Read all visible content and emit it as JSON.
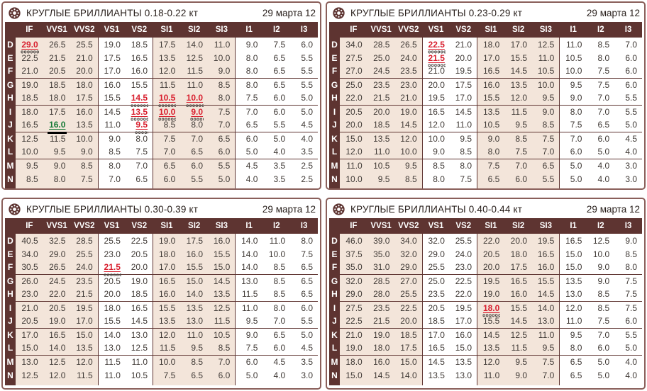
{
  "theme": {
    "maroon": "#5e3431",
    "panel_border": "#8a5f5a",
    "beige": "#f3e5da",
    "white": "#ffffff",
    "number_text": "#403a36",
    "title_text": "#2a211d",
    "change_down_red": "#d81f2e",
    "change_up_green": "#157a36"
  },
  "icon": {
    "name": "round-diamond-icon"
  },
  "columns": [
    "IF",
    "VVS1",
    "VVS2",
    "VS1",
    "VS2",
    "SI1",
    "SI2",
    "SI3",
    "I1",
    "I2",
    "I3"
  ],
  "row_labels": [
    "D",
    "E",
    "F",
    "G",
    "H",
    "I",
    "J",
    "K",
    "L",
    "M",
    "N"
  ],
  "panels": [
    {
      "title": "КРУГЛЫЕ БРИЛЛИАНТЫ 0.18-0.22 кт",
      "date": "29 марта 12",
      "rows": [
        [
          "29.0",
          "26.5",
          "25.5",
          "19.0",
          "18.5",
          "17.5",
          "14.0",
          "11.0",
          "9.0",
          "7.5",
          "6.0"
        ],
        [
          "22.5",
          "21.5",
          "21.0",
          "17.5",
          "16.5",
          "13.5",
          "12.5",
          "10.0",
          "8.0",
          "6.5",
          "5.5"
        ],
        [
          "21.0",
          "20.5",
          "20.0",
          "17.0",
          "16.0",
          "12.0",
          "11.5",
          "9.0",
          "8.0",
          "6.5",
          "5.5"
        ],
        [
          "19.0",
          "18.5",
          "18.0",
          "16.0",
          "15.5",
          "11.5",
          "11.0",
          "8.5",
          "8.0",
          "6.5",
          "5.5"
        ],
        [
          "18.5",
          "18.0",
          "17.5",
          "15.5",
          "14.5",
          "10.5",
          "10.0",
          "8.0",
          "7.5",
          "6.0",
          "5.0"
        ],
        [
          "18.0",
          "17.5",
          "16.0",
          "14.5",
          "13.5",
          "10.0",
          "9.0",
          "7.5",
          "7.0",
          "6.0",
          "5.0"
        ],
        [
          "16.5",
          "16.0",
          "13.5",
          "11.0",
          "9.5",
          "8.5",
          "8.0",
          "7.0",
          "6.5",
          "5.5",
          "4.5"
        ],
        [
          "12.5",
          "11.5",
          "10.0",
          "9.0",
          "8.0",
          "7.5",
          "7.0",
          "6.5",
          "6.0",
          "5.0",
          "4.0"
        ],
        [
          "10.0",
          "9.5",
          "9.0",
          "8.5",
          "7.5",
          "7.0",
          "6.5",
          "6.0",
          "5.0",
          "4.0",
          "3.5"
        ],
        [
          "9.5",
          "9.0",
          "8.5",
          "8.0",
          "7.0",
          "6.5",
          "6.0",
          "5.5",
          "4.5",
          "3.5",
          "2.5"
        ],
        [
          "8.5",
          "8.0",
          "7.5",
          "7.0",
          "6.5",
          "6.0",
          "5.5",
          "5.0",
          "4.0",
          "3.5",
          "2.5"
        ]
      ],
      "changes": [
        {
          "row": "D",
          "col": "IF",
          "dir": "down"
        },
        {
          "row": "H",
          "col": "VS2",
          "dir": "down"
        },
        {
          "row": "H",
          "col": "SI1",
          "dir": "down"
        },
        {
          "row": "H",
          "col": "SI2",
          "dir": "down"
        },
        {
          "row": "I",
          "col": "VS2",
          "dir": "down"
        },
        {
          "row": "I",
          "col": "SI1",
          "dir": "down"
        },
        {
          "row": "I",
          "col": "SI2",
          "dir": "down"
        },
        {
          "row": "J",
          "col": "VVS1",
          "dir": "up"
        },
        {
          "row": "J",
          "col": "VS2",
          "dir": "down"
        }
      ]
    },
    {
      "title": "КРУГЛЫЕ БРИЛЛИАНТЫ 0.23-0.29 кт",
      "date": "29 марта 12",
      "rows": [
        [
          "34.0",
          "28.5",
          "26.5",
          "22.5",
          "21.0",
          "18.0",
          "17.0",
          "12.5",
          "11.0",
          "8.5",
          "7.0"
        ],
        [
          "27.5",
          "25.0",
          "24.0",
          "21.5",
          "20.0",
          "17.0",
          "15.5",
          "11.0",
          "10.5",
          "8.0",
          "6.0"
        ],
        [
          "27.0",
          "24.5",
          "23.5",
          "21.0",
          "19.5",
          "16.5",
          "14.5",
          "10.5",
          "10.0",
          "7.5",
          "6.0"
        ],
        [
          "25.0",
          "23.5",
          "23.0",
          "20.0",
          "17.5",
          "16.0",
          "13.5",
          "10.0",
          "9.5",
          "7.5",
          "6.0"
        ],
        [
          "22.0",
          "21.5",
          "21.0",
          "19.5",
          "17.0",
          "15.5",
          "12.0",
          "9.5",
          "9.0",
          "7.0",
          "5.5"
        ],
        [
          "20.5",
          "20.0",
          "19.0",
          "16.5",
          "14.5",
          "13.5",
          "11.5",
          "9.0",
          "8.0",
          "7.0",
          "5.5"
        ],
        [
          "20.0",
          "18.5",
          "14.5",
          "12.0",
          "11.0",
          "10.5",
          "9.5",
          "8.5",
          "7.5",
          "6.5",
          "5.0"
        ],
        [
          "15.0",
          "13.5",
          "12.0",
          "10.0",
          "9.5",
          "9.0",
          "8.5",
          "7.5",
          "7.0",
          "6.0",
          "4.5"
        ],
        [
          "12.0",
          "11.0",
          "10.0",
          "9.0",
          "8.5",
          "8.0",
          "7.5",
          "7.0",
          "6.0",
          "5.0",
          "4.0"
        ],
        [
          "11.0",
          "10.5",
          "9.5",
          "8.5",
          "8.0",
          "7.5",
          "7.0",
          "6.5",
          "5.0",
          "4.0",
          "3.0"
        ],
        [
          "10.0",
          "9.5",
          "8.5",
          "8.0",
          "7.5",
          "6.5",
          "6.0",
          "5.5",
          "5.0",
          "4.0",
          "3.0"
        ]
      ],
      "changes": [
        {
          "row": "D",
          "col": "VS1",
          "dir": "down"
        },
        {
          "row": "E",
          "col": "VS1",
          "dir": "down"
        }
      ]
    },
    {
      "title": "КРУГЛЫЕ БРИЛЛИАНТЫ 0.30-0.39 кт",
      "date": "29 марта 12",
      "rows": [
        [
          "40.5",
          "32.5",
          "28.5",
          "25.5",
          "22.5",
          "19.0",
          "17.5",
          "16.0",
          "14.0",
          "11.0",
          "8.0"
        ],
        [
          "34.0",
          "29.0",
          "25.5",
          "23.0",
          "20.5",
          "18.0",
          "16.0",
          "15.5",
          "14.0",
          "10.0",
          "7.5"
        ],
        [
          "30.5",
          "26.5",
          "24.0",
          "21.5",
          "20.0",
          "17.0",
          "15.5",
          "15.0",
          "14.0",
          "8.5",
          "6.5"
        ],
        [
          "26.0",
          "24.5",
          "23.5",
          "20.5",
          "19.0",
          "16.5",
          "15.0",
          "14.5",
          "13.0",
          "8.5",
          "6.5"
        ],
        [
          "23.0",
          "22.0",
          "21.5",
          "20.0",
          "18.5",
          "16.0",
          "14.0",
          "13.5",
          "11.5",
          "8.5",
          "6.5"
        ],
        [
          "21.0",
          "20.5",
          "19.5",
          "18.0",
          "16.5",
          "15.5",
          "13.5",
          "12.5",
          "11.0",
          "8.0",
          "6.0"
        ],
        [
          "20.5",
          "19.0",
          "17.0",
          "15.5",
          "14.5",
          "13.5",
          "13.0",
          "11.5",
          "9.5",
          "7.0",
          "5.5"
        ],
        [
          "17.0",
          "16.5",
          "15.0",
          "14.0",
          "13.0",
          "12.0",
          "11.0",
          "10.5",
          "9.0",
          "6.5",
          "5.0"
        ],
        [
          "15.0",
          "14.0",
          "13.5",
          "13.0",
          "12.5",
          "11.5",
          "9.5",
          "8.5",
          "7.5",
          "6.0",
          "4.5"
        ],
        [
          "13.0",
          "12.5",
          "12.0",
          "11.5",
          "11.0",
          "10.0",
          "8.5",
          "7.0",
          "6.0",
          "4.5",
          "3.5"
        ],
        [
          "12.5",
          "12.0",
          "11.5",
          "11.0",
          "10.5",
          "7.5",
          "6.5",
          "6.0",
          "5.0",
          "4.0",
          "3.0"
        ]
      ],
      "changes": [
        {
          "row": "F",
          "col": "VS1",
          "dir": "down"
        }
      ]
    },
    {
      "title": "КРУГЛЫЕ БРИЛЛИАНТЫ 0.40-0.44 кт",
      "date": "29 марта 12",
      "rows": [
        [
          "46.0",
          "39.0",
          "34.0",
          "32.0",
          "25.5",
          "22.0",
          "20.0",
          "19.5",
          "16.5",
          "12.5",
          "9.0"
        ],
        [
          "37.5",
          "35.0",
          "32.0",
          "29.0",
          "24.0",
          "20.5",
          "18.0",
          "16.5",
          "15.0",
          "10.0",
          "8.5"
        ],
        [
          "35.0",
          "31.0",
          "29.0",
          "25.5",
          "23.0",
          "20.0",
          "17.5",
          "16.0",
          "15.0",
          "9.0",
          "8.0"
        ],
        [
          "32.0",
          "28.5",
          "27.0",
          "25.0",
          "22.5",
          "19.5",
          "16.5",
          "15.5",
          "13.5",
          "9.0",
          "7.5"
        ],
        [
          "29.0",
          "28.0",
          "25.5",
          "23.5",
          "22.0",
          "19.0",
          "16.0",
          "14.5",
          "13.0",
          "8.5",
          "7.5"
        ],
        [
          "27.5",
          "23.5",
          "22.5",
          "20.5",
          "19.5",
          "18.0",
          "15.5",
          "14.0",
          "12.0",
          "8.5",
          "7.5"
        ],
        [
          "22.5",
          "21.5",
          "20.0",
          "18.5",
          "17.0",
          "15.5",
          "14.5",
          "13.0",
          "11.0",
          "7.5",
          "6.0"
        ],
        [
          "21.0",
          "19.0",
          "18.5",
          "17.0",
          "16.0",
          "14.5",
          "12.5",
          "11.0",
          "9.5",
          "7.0",
          "5.5"
        ],
        [
          "19.0",
          "18.0",
          "17.5",
          "16.5",
          "15.0",
          "13.5",
          "11.5",
          "9.5",
          "8.0",
          "6.0",
          "5.0"
        ],
        [
          "18.0",
          "16.0",
          "15.0",
          "14.5",
          "13.5",
          "12.0",
          "9.5",
          "7.5",
          "6.5",
          "5.0",
          "4.0"
        ],
        [
          "15.0",
          "14.5",
          "14.0",
          "13.5",
          "13.0",
          "11.0",
          "9.0",
          "7.0",
          "6.5",
          "5.0",
          "4.0"
        ]
      ],
      "changes": [
        {
          "row": "I",
          "col": "SI1",
          "dir": "down"
        }
      ]
    }
  ]
}
